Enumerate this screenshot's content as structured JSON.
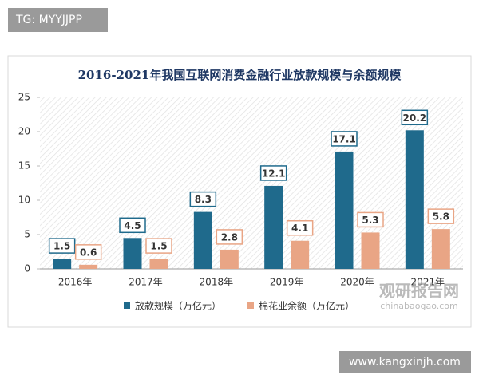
{
  "chart_data": {
    "type": "bar",
    "title": "2016-2021年我国互联网消费金融行业放款规模与余额规模",
    "categories": [
      "2016年",
      "2017年",
      "2018年",
      "2019年",
      "2020年",
      "2021年"
    ],
    "series": [
      {
        "name": "放款规模（万亿元）",
        "color": "#1f6a8c",
        "values": [
          1.5,
          4.5,
          8.3,
          12.1,
          17.1,
          20.2
        ]
      },
      {
        "name": "棉花业余额（万亿元）",
        "color": "#e9a585",
        "values": [
          0.6,
          1.5,
          2.8,
          4.1,
          5.3,
          5.8
        ]
      }
    ],
    "ylim": [
      0,
      25
    ],
    "yticks": [
      0,
      5,
      10,
      15,
      20,
      25
    ],
    "legend": "bottom"
  },
  "watermarks": {
    "top_left": "TG: MYYJJPP",
    "logo": "观研报告网",
    "logo_url": "chinabaogao.com",
    "bottom_right": "www.kangxinjh.com"
  }
}
